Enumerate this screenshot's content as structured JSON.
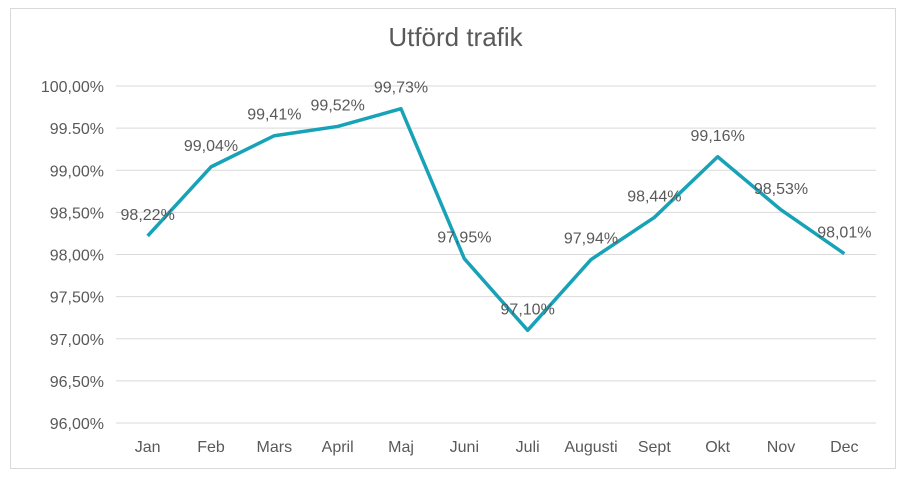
{
  "chart_data": {
    "type": "line",
    "title": "Utförd trafik",
    "xlabel": "",
    "ylabel": "",
    "categories": [
      "Jan",
      "Feb",
      "Mars",
      "April",
      "Maj",
      "Juni",
      "Juli",
      "Augusti",
      "Sept",
      "Okt",
      "Nov",
      "Dec"
    ],
    "series": [
      {
        "values": [
          98.22,
          99.04,
          99.41,
          99.52,
          99.73,
          97.95,
          97.1,
          97.94,
          98.44,
          99.16,
          98.53,
          98.01
        ],
        "data_labels": [
          "98,22%",
          "99,04%",
          "99,41%",
          "99,52%",
          "99,73%",
          "97,95%",
          "97,10%",
          "97,94%",
          "98,44%",
          "99,16%",
          "98,53%",
          "98,01%"
        ],
        "color": "#17a2b8"
      }
    ],
    "ylim": [
      96.0,
      100.0
    ],
    "y_ticks": [
      96.0,
      96.5,
      97.0,
      97.5,
      98.0,
      98.5,
      99.0,
      99.5,
      100.0
    ],
    "y_tick_labels": [
      "96,00%",
      "96,50%",
      "97,00%",
      "97,50%",
      "98,00%",
      "98,50%",
      "99,00%",
      "99.50%",
      "100,00%"
    ],
    "grid": true,
    "legend": "none",
    "gridline_color": "#d9d9d9"
  }
}
